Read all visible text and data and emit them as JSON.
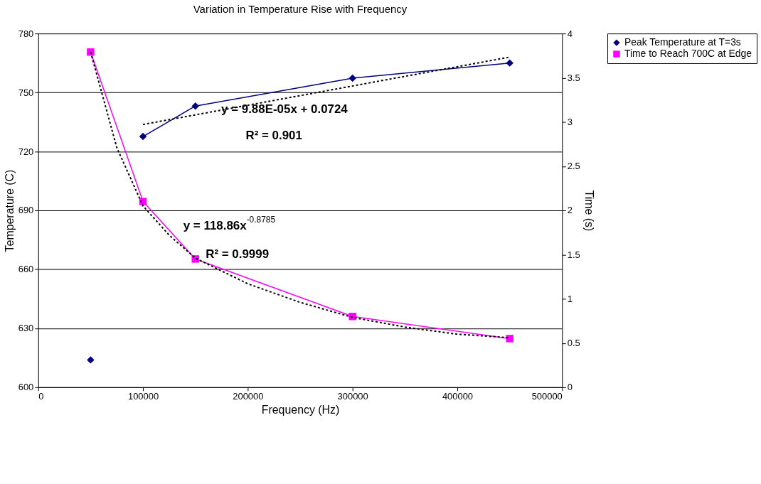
{
  "chart_data": {
    "type": "line",
    "title": "Variation in Temperature Rise with Frequency",
    "xlabel": "Frequency (Hz)",
    "ylabel": "Temperature (C)",
    "y2label": "Time (s)",
    "xlim": [
      0,
      500000
    ],
    "xticks": [
      0,
      100000,
      200000,
      300000,
      400000,
      500000
    ],
    "ylim": [
      600,
      780
    ],
    "yticks": [
      600,
      630,
      660,
      690,
      720,
      750,
      780
    ],
    "y2lim": [
      0,
      4
    ],
    "y2ticks": [
      0,
      0.5,
      1,
      1.5,
      2,
      2.5,
      3,
      3.5,
      4
    ],
    "grid": "y",
    "legend": "right",
    "series": [
      {
        "name": "Peak Temperature at T=3s",
        "color": "#000080",
        "marker": "diamond",
        "x": [
          100000,
          150000,
          300000,
          450000
        ],
        "values": [
          727.6,
          743.1,
          757.3,
          765
        ]
      },
      {
        "type": "scatter",
        "color": "#000080",
        "marker": "diamond",
        "x": [
          50000
        ],
        "values": [
          613.9
        ]
      },
      {
        "name": "Time to Reach 700C at Edge",
        "axis": "y2",
        "color": "#ff00ff",
        "marker": "square",
        "x": [
          50000,
          100000,
          150000,
          300000,
          450000
        ],
        "values": [
          3.79,
          2.1,
          1.45,
          0.8,
          0.55
        ]
      },
      {
        "color": "#000000",
        "line_style": "dotted",
        "marker": "none",
        "x": [
          100000,
          450000
        ],
        "values": [
          733.7,
          768
        ]
      },
      {
        "axis": "y2",
        "color": "#000000",
        "line_style": "dotted",
        "marker": "none",
        "x": [
          50000,
          75000,
          100000,
          125000,
          150000,
          200000,
          250000,
          300000,
          350000,
          400000,
          450000
        ],
        "values": [
          3.79,
          2.71,
          2.05,
          1.72,
          1.46,
          1.17,
          0.96,
          0.79,
          0.68,
          0.6,
          0.56
        ]
      }
    ],
    "annotations": [
      "y = 9.88E-05x + 0.0724",
      "R² = 0.901",
      "y = 118.86x$^{-0.8785}$",
      "R² = 0.9999"
    ]
  }
}
